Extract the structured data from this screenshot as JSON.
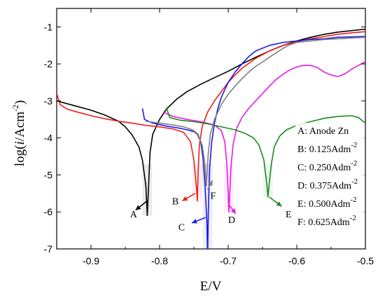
{
  "chart_data": {
    "type": "line",
    "xlabel": "E/V",
    "ylabel": "log(i/Acm-2)",
    "xlim": [
      -0.95,
      -0.5
    ],
    "ylim": [
      -7,
      -0.5
    ],
    "xticks": [
      -0.9,
      -0.8,
      -0.7,
      -0.6,
      -0.5
    ],
    "yticks": [
      -7,
      -6,
      -5,
      -4,
      -3,
      -2,
      -1
    ],
    "grid": false,
    "legend_position": "right",
    "legend": [
      {
        "key": "A",
        "text": "Anode Zn"
      },
      {
        "key": "B",
        "text": "0.125Adm",
        "sup": "-2"
      },
      {
        "key": "C",
        "text": "0.250Adm",
        "sup": "-2"
      },
      {
        "key": "D",
        "text": "0.375Adm",
        "sup": "-2"
      },
      {
        "key": "E",
        "text": "0.500Adm",
        "sup": "-2"
      },
      {
        "key": "F",
        "text": "0.625Adm",
        "sup": "-2"
      }
    ],
    "series": [
      {
        "name": "A",
        "color": "#000000",
        "label_point": [
          -0.838,
          -6.05
        ],
        "arrow_from": [
          -0.818,
          -5.7
        ],
        "arrow_to": [
          -0.835,
          -5.95
        ],
        "points": [
          [
            -0.95,
            -3.0
          ],
          [
            -0.92,
            -3.15
          ],
          [
            -0.9,
            -3.25
          ],
          [
            -0.88,
            -3.38
          ],
          [
            -0.86,
            -3.55
          ],
          [
            -0.85,
            -3.7
          ],
          [
            -0.84,
            -3.92
          ],
          [
            -0.83,
            -4.25
          ],
          [
            -0.825,
            -4.6
          ],
          [
            -0.82,
            -5.3
          ],
          [
            -0.818,
            -6.1
          ],
          [
            -0.816,
            -5.3
          ],
          [
            -0.814,
            -4.4
          ],
          [
            -0.81,
            -3.9
          ],
          [
            -0.8,
            -3.5
          ],
          [
            -0.79,
            -3.22
          ],
          [
            -0.775,
            -2.95
          ],
          [
            -0.76,
            -2.75
          ],
          [
            -0.74,
            -2.55
          ],
          [
            -0.72,
            -2.37
          ],
          [
            -0.7,
            -2.2
          ],
          [
            -0.68,
            -2.0
          ],
          [
            -0.66,
            -1.82
          ],
          [
            -0.64,
            -1.65
          ],
          [
            -0.62,
            -1.5
          ],
          [
            -0.6,
            -1.38
          ],
          [
            -0.58,
            -1.28
          ],
          [
            -0.56,
            -1.2
          ],
          [
            -0.54,
            -1.14
          ],
          [
            -0.52,
            -1.1
          ],
          [
            -0.5,
            -1.06
          ]
        ]
      },
      {
        "name": "B",
        "color": "#e8201a",
        "label_point": [
          -0.777,
          -5.7
        ],
        "arrow_from": [
          -0.748,
          -5.5
        ],
        "arrow_to": [
          -0.767,
          -5.7
        ],
        "points": [
          [
            -0.95,
            -2.8
          ],
          [
            -0.945,
            -3.1
          ],
          [
            -0.935,
            -3.22
          ],
          [
            -0.92,
            -3.3
          ],
          [
            -0.9,
            -3.4
          ],
          [
            -0.88,
            -3.48
          ],
          [
            -0.86,
            -3.55
          ],
          [
            -0.84,
            -3.6
          ],
          [
            -0.82,
            -3.66
          ],
          [
            -0.8,
            -3.7
          ],
          [
            -0.78,
            -3.76
          ],
          [
            -0.765,
            -3.85
          ],
          [
            -0.755,
            -4.1
          ],
          [
            -0.75,
            -4.6
          ],
          [
            -0.746,
            -5.4
          ],
          [
            -0.745,
            -5.7
          ],
          [
            -0.744,
            -5.0
          ],
          [
            -0.742,
            -4.2
          ],
          [
            -0.738,
            -3.7
          ],
          [
            -0.73,
            -3.3
          ],
          [
            -0.72,
            -3.0
          ],
          [
            -0.71,
            -2.75
          ],
          [
            -0.7,
            -2.5
          ],
          [
            -0.69,
            -2.3
          ],
          [
            -0.68,
            -2.12
          ],
          [
            -0.66,
            -1.85
          ],
          [
            -0.64,
            -1.65
          ],
          [
            -0.62,
            -1.5
          ],
          [
            -0.6,
            -1.4
          ],
          [
            -0.58,
            -1.32
          ],
          [
            -0.56,
            -1.26
          ],
          [
            -0.54,
            -1.2
          ],
          [
            -0.52,
            -1.16
          ],
          [
            -0.5,
            -1.13
          ]
        ]
      },
      {
        "name": "C",
        "color": "#1a1ae8",
        "label_point": [
          -0.768,
          -6.4
        ],
        "arrow_from": [
          -0.733,
          -6.15
        ],
        "arrow_to": [
          -0.753,
          -6.3
        ],
        "points": [
          [
            -0.825,
            -3.2
          ],
          [
            -0.822,
            -3.5
          ],
          [
            -0.81,
            -3.6
          ],
          [
            -0.79,
            -3.68
          ],
          [
            -0.77,
            -3.74
          ],
          [
            -0.76,
            -3.78
          ],
          [
            -0.75,
            -3.83
          ],
          [
            -0.745,
            -3.9
          ],
          [
            -0.74,
            -4.1
          ],
          [
            -0.737,
            -4.5
          ],
          [
            -0.734,
            -5.2
          ],
          [
            -0.731,
            -6.3
          ],
          [
            -0.73,
            -7.3
          ],
          [
            -0.729,
            -6.0
          ],
          [
            -0.727,
            -4.8
          ],
          [
            -0.724,
            -4.1
          ],
          [
            -0.72,
            -3.6
          ],
          [
            -0.715,
            -3.2
          ],
          [
            -0.71,
            -2.9
          ],
          [
            -0.7,
            -2.5
          ],
          [
            -0.69,
            -2.22
          ],
          [
            -0.68,
            -2.0
          ],
          [
            -0.67,
            -1.8
          ],
          [
            -0.66,
            -1.65
          ],
          [
            -0.64,
            -1.5
          ],
          [
            -0.62,
            -1.42
          ],
          [
            -0.6,
            -1.38
          ],
          [
            -0.58,
            -1.34
          ],
          [
            -0.56,
            -1.32
          ],
          [
            -0.54,
            -1.28
          ],
          [
            -0.52,
            -1.27
          ],
          [
            -0.5,
            -1.26
          ]
        ]
      },
      {
        "name": "D",
        "color": "#e818e8",
        "label_point": [
          -0.695,
          -6.2
        ],
        "arrow_from": [
          -0.699,
          -5.8
        ],
        "arrow_to": [
          -0.689,
          -6.05
        ],
        "points": [
          [
            -0.795,
            -3.3
          ],
          [
            -0.78,
            -3.42
          ],
          [
            -0.76,
            -3.5
          ],
          [
            -0.74,
            -3.56
          ],
          [
            -0.72,
            -3.65
          ],
          [
            -0.71,
            -3.8
          ],
          [
            -0.705,
            -4.1
          ],
          [
            -0.702,
            -4.7
          ],
          [
            -0.7,
            -5.5
          ],
          [
            -0.699,
            -6.0
          ],
          [
            -0.698,
            -5.6
          ],
          [
            -0.696,
            -4.8
          ],
          [
            -0.693,
            -4.2
          ],
          [
            -0.688,
            -3.75
          ],
          [
            -0.68,
            -3.45
          ],
          [
            -0.67,
            -3.2
          ],
          [
            -0.66,
            -3.0
          ],
          [
            -0.65,
            -2.8
          ],
          [
            -0.64,
            -2.6
          ],
          [
            -0.63,
            -2.42
          ],
          [
            -0.62,
            -2.28
          ],
          [
            -0.61,
            -2.16
          ],
          [
            -0.6,
            -2.08
          ],
          [
            -0.59,
            -2.04
          ],
          [
            -0.58,
            -2.04
          ],
          [
            -0.57,
            -2.1
          ],
          [
            -0.56,
            -2.22
          ],
          [
            -0.55,
            -2.3
          ],
          [
            -0.54,
            -2.34
          ],
          [
            -0.53,
            -2.27
          ],
          [
            -0.52,
            -2.14
          ],
          [
            -0.51,
            -2.04
          ],
          [
            -0.5,
            -1.94
          ]
        ]
      },
      {
        "name": "E",
        "color": "#1a8a1a",
        "label_point": [
          -0.612,
          -6.05
        ],
        "arrow_from": [
          -0.64,
          -5.6
        ],
        "arrow_to": [
          -0.622,
          -5.85
        ],
        "points": [
          [
            -0.79,
            -3.2
          ],
          [
            -0.785,
            -3.45
          ],
          [
            -0.77,
            -3.52
          ],
          [
            -0.75,
            -3.56
          ],
          [
            -0.73,
            -3.62
          ],
          [
            -0.71,
            -3.7
          ],
          [
            -0.69,
            -3.78
          ],
          [
            -0.675,
            -3.88
          ],
          [
            -0.663,
            -4.0
          ],
          [
            -0.655,
            -4.2
          ],
          [
            -0.648,
            -4.6
          ],
          [
            -0.644,
            -5.2
          ],
          [
            -0.642,
            -5.6
          ],
          [
            -0.64,
            -5.2
          ],
          [
            -0.637,
            -4.7
          ],
          [
            -0.633,
            -4.25
          ],
          [
            -0.625,
            -3.95
          ],
          [
            -0.615,
            -3.78
          ],
          [
            -0.6,
            -3.66
          ],
          [
            -0.58,
            -3.56
          ],
          [
            -0.56,
            -3.47
          ],
          [
            -0.54,
            -3.42
          ],
          [
            -0.52,
            -3.4
          ],
          [
            -0.51,
            -3.45
          ],
          [
            -0.5,
            -3.6
          ]
        ]
      },
      {
        "name": "F",
        "color": "#808080",
        "label_point": [
          -0.722,
          -5.55
        ],
        "arrow_from": [
          -0.73,
          -5.4
        ],
        "arrow_to": [
          -0.723,
          -5.15
        ],
        "points": [
          [
            -0.82,
            -3.55
          ],
          [
            -0.8,
            -3.6
          ],
          [
            -0.78,
            -3.65
          ],
          [
            -0.765,
            -3.7
          ],
          [
            -0.752,
            -3.78
          ],
          [
            -0.744,
            -3.9
          ],
          [
            -0.738,
            -4.2
          ],
          [
            -0.734,
            -4.7
          ],
          [
            -0.732,
            -5.3
          ],
          [
            -0.731,
            -5.0
          ],
          [
            -0.729,
            -4.4
          ],
          [
            -0.726,
            -3.9
          ],
          [
            -0.72,
            -3.5
          ],
          [
            -0.71,
            -3.1
          ],
          [
            -0.7,
            -2.82
          ],
          [
            -0.69,
            -2.6
          ],
          [
            -0.68,
            -2.4
          ],
          [
            -0.67,
            -2.22
          ],
          [
            -0.66,
            -2.07
          ],
          [
            -0.65,
            -1.95
          ],
          [
            -0.64,
            -1.82
          ],
          [
            -0.63,
            -1.7
          ],
          [
            -0.62,
            -1.58
          ],
          [
            -0.61,
            -1.48
          ],
          [
            -0.6,
            -1.42
          ],
          [
            -0.58,
            -1.38
          ],
          [
            -0.56,
            -1.34
          ],
          [
            -0.54,
            -1.32
          ],
          [
            -0.52,
            -1.3
          ],
          [
            -0.5,
            -1.28
          ]
        ]
      }
    ]
  }
}
